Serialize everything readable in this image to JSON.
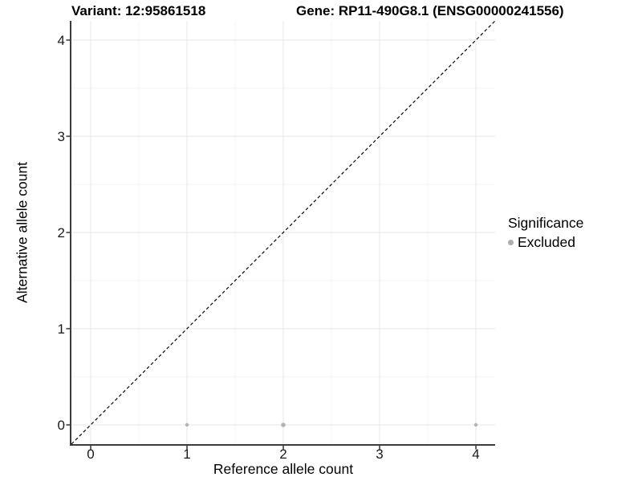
{
  "header": {
    "variant_title": "Variant: 12:95861518",
    "gene_title": "Gene: RP11-490G8.1 (ENSG00000241556)"
  },
  "legend": {
    "title": "Significance",
    "items": [
      {
        "label": "Excluded",
        "color": "#adadad"
      }
    ]
  },
  "chart_data": {
    "type": "scatter",
    "title": "Variant: 12:95861518 / Gene: RP11-490G8.1 (ENSG00000241556)",
    "xlabel": "Reference allele count",
    "ylabel": "Alternative allele count",
    "xlim": [
      -0.2,
      4.2
    ],
    "ylim": [
      -0.2,
      4.2
    ],
    "x_ticks": [
      0,
      1,
      2,
      3,
      4
    ],
    "y_ticks": [
      0,
      1,
      2,
      3,
      4
    ],
    "minor_ticks": [
      0.5,
      1.5,
      2.5,
      3.5
    ],
    "grid": "on",
    "legend_position": "right",
    "identity_line": {
      "style": "dashed",
      "from": [
        -0.2,
        -0.2
      ],
      "to": [
        4.2,
        4.2
      ],
      "color": "#000000",
      "dash": "4 3",
      "width": 1.2
    },
    "series": [
      {
        "name": "Excluded",
        "color": "#b4b4b4",
        "points": [
          {
            "x": 1,
            "y": 0,
            "r": 2.2
          },
          {
            "x": 2,
            "y": 0,
            "r": 2.8
          },
          {
            "x": 4,
            "y": 0,
            "r": 2.2
          }
        ]
      }
    ],
    "colors": {
      "major_grid": "#e7e7e7",
      "minor_grid": "#f4f4f4",
      "axis_line": "#3c3c3c",
      "tick_mark": "#333333",
      "tick_label": "#1a1a1a"
    }
  }
}
